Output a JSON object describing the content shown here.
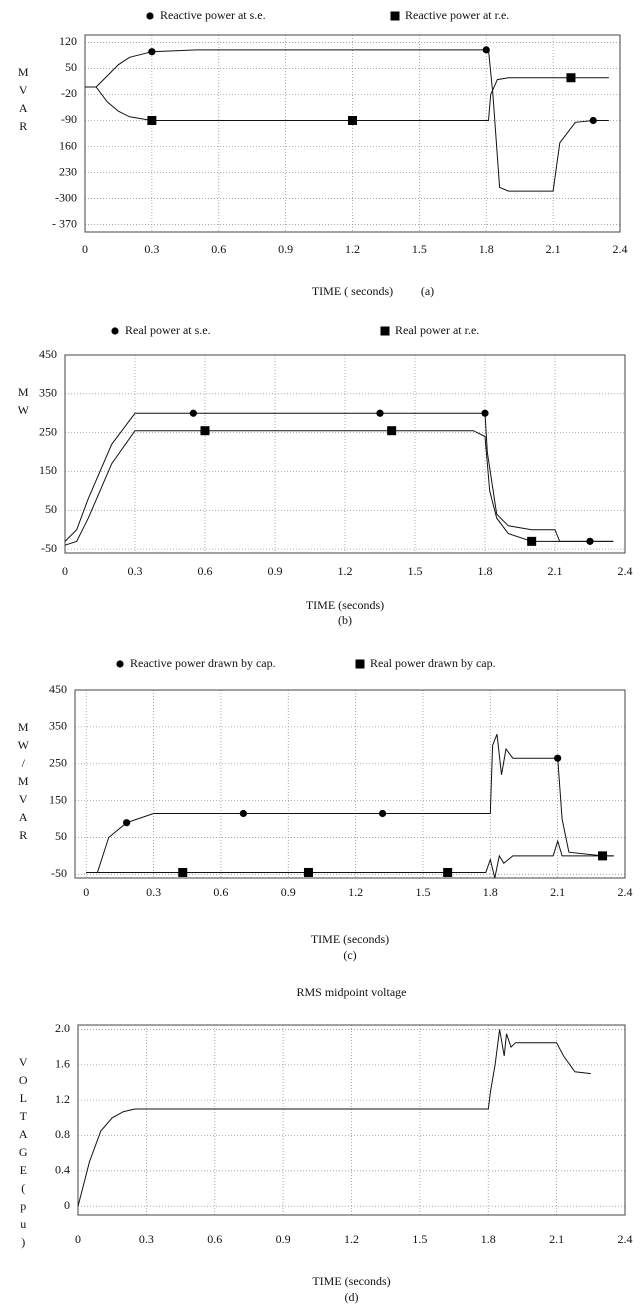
{
  "chart_data": [
    {
      "type": "line",
      "xlabel": "TIME ( seconds)",
      "caption": "(a)",
      "ylabel": "MVAR",
      "xlim": [
        0,
        2.4
      ],
      "xticks": [
        0,
        0.3,
        0.6,
        0.9,
        1.2,
        1.5,
        1.8,
        2.1,
        2.4
      ],
      "ylim": [
        -390,
        140
      ],
      "yticks": [
        120,
        50,
        -20,
        -90,
        {
          "value": -160,
          "label": "160"
        },
        {
          "value": -230,
          "label": "230"
        },
        -300,
        {
          "value": -370,
          "label": "- 370"
        }
      ],
      "grid": true,
      "legend": "top",
      "series": [
        {
          "name": "Reactive power at  s.e.",
          "color": "#111111",
          "marker": "circle",
          "x": [
            0,
            0.05,
            0.1,
            0.15,
            0.2,
            0.3,
            0.5,
            1.0,
            1.5,
            1.8,
            1.81,
            1.83,
            1.86,
            1.9,
            2.0,
            2.1,
            2.13,
            2.2,
            2.28,
            2.35
          ],
          "values": [
            0,
            0,
            30,
            60,
            80,
            95,
            100,
            100,
            100,
            100,
            100,
            -20,
            -270,
            -280,
            -280,
            -280,
            -150,
            -95,
            -90,
            -90
          ]
        },
        {
          "name": "Reactive power at  r.e.",
          "color": "#111111",
          "marker": "square",
          "x": [
            0,
            0.05,
            0.1,
            0.15,
            0.2,
            0.3,
            0.5,
            1.2,
            1.8,
            1.81,
            1.82,
            1.85,
            1.9,
            2.0,
            2.18,
            2.35
          ],
          "values": [
            0,
            0,
            -40,
            -65,
            -80,
            -90,
            -90,
            -90,
            -90,
            -90,
            -20,
            20,
            25,
            25,
            25,
            25
          ]
        }
      ]
    },
    {
      "type": "line",
      "xlabel": "TIME (seconds)",
      "caption": "(b)",
      "ylabel": "MW",
      "xlim": [
        0,
        2.4
      ],
      "xticks": [
        0,
        0.3,
        0.6,
        0.9,
        1.2,
        1.5,
        1.8,
        2.1,
        2.4
      ],
      "ylim": [
        -60,
        450
      ],
      "yticks": [
        450,
        350,
        250,
        150,
        50,
        -50
      ],
      "grid": true,
      "legend": "top",
      "series": [
        {
          "name": "Real power at s.e.",
          "color": "#111111",
          "marker": "circle",
          "x": [
            0,
            0.05,
            0.1,
            0.2,
            0.3,
            0.55,
            1.35,
            1.8,
            1.81,
            1.85,
            1.9,
            2.0,
            2.1,
            2.12,
            2.25,
            2.35
          ],
          "values": [
            -30,
            0,
            80,
            220,
            300,
            300,
            300,
            300,
            200,
            40,
            10,
            0,
            0,
            -30,
            -30,
            -30
          ]
        },
        {
          "name": "Real power at r.e.",
          "color": "#111111",
          "marker": "square",
          "x": [
            0,
            0.05,
            0.1,
            0.2,
            0.3,
            0.6,
            1.4,
            1.75,
            1.8,
            1.82,
            1.85,
            1.9,
            2.0,
            2.1,
            2.35
          ],
          "values": [
            -40,
            -30,
            30,
            170,
            255,
            255,
            255,
            255,
            240,
            100,
            30,
            -10,
            -30,
            -30,
            -30
          ]
        }
      ]
    },
    {
      "type": "line",
      "xlabel": "TIME (seconds)",
      "caption": "(c)",
      "ylabel": "MW/MVAR",
      "xlim": [
        -0.05,
        2.4
      ],
      "xticks": [
        0,
        0.3,
        0.6,
        0.9,
        1.2,
        1.5,
        1.8,
        2.1,
        2.4
      ],
      "ylim": [
        -60,
        450
      ],
      "yticks": [
        450,
        350,
        250,
        150,
        50,
        -50
      ],
      "grid": true,
      "legend": "top",
      "series": [
        {
          "name": "Reactive power  drawn by cap.",
          "color": "#111111",
          "marker": "circle",
          "x": [
            0,
            0.05,
            0.1,
            0.18,
            0.3,
            0.7,
            1.32,
            1.8,
            1.81,
            1.83,
            1.85,
            1.87,
            1.9,
            2.0,
            2.1,
            2.12,
            2.15,
            2.3,
            2.35
          ],
          "values": [
            -45,
            -45,
            50,
            90,
            115,
            115,
            115,
            115,
            300,
            330,
            220,
            290,
            265,
            265,
            265,
            100,
            10,
            0,
            0
          ]
        },
        {
          "name": "Real power drawn  by  cap.",
          "color": "#111111",
          "marker": "square",
          "x": [
            0,
            0.43,
            0.99,
            1.61,
            1.78,
            1.8,
            1.82,
            1.84,
            1.86,
            1.9,
            2.08,
            2.1,
            2.12,
            2.3,
            2.35
          ],
          "values": [
            -45,
            -45,
            -45,
            -45,
            -45,
            -10,
            -60,
            0,
            -20,
            0,
            0,
            40,
            0,
            0,
            0
          ]
        }
      ]
    },
    {
      "type": "line",
      "title": "RMS midpoint voltage",
      "xlabel": "TIME  (seconds)",
      "caption": "(d)",
      "ylabel": "VOLTAGE(pu)",
      "xlim": [
        0,
        2.4
      ],
      "xticks": [
        0,
        0.3,
        0.6,
        0.9,
        1.2,
        1.5,
        1.8,
        2.1,
        2.4
      ],
      "ylim": [
        -0.1,
        2.05
      ],
      "yticks": [
        0,
        0.4,
        0.8,
        1.2,
        1.6,
        {
          "value": 2,
          "label": "2.0"
        }
      ],
      "grid": true,
      "series": [
        {
          "color": "#111111",
          "x": [
            0,
            0.02,
            0.05,
            0.1,
            0.15,
            0.2,
            0.25,
            0.3,
            1.8,
            1.81,
            1.83,
            1.85,
            1.87,
            1.88,
            1.9,
            1.92,
            2.0,
            2.1,
            2.13,
            2.18,
            2.25
          ],
          "values": [
            0,
            0.2,
            0.5,
            0.85,
            1.0,
            1.07,
            1.1,
            1.1,
            1.1,
            1.3,
            1.6,
            2.0,
            1.7,
            1.95,
            1.8,
            1.85,
            1.85,
            1.85,
            1.7,
            1.52,
            1.5
          ]
        }
      ]
    }
  ]
}
